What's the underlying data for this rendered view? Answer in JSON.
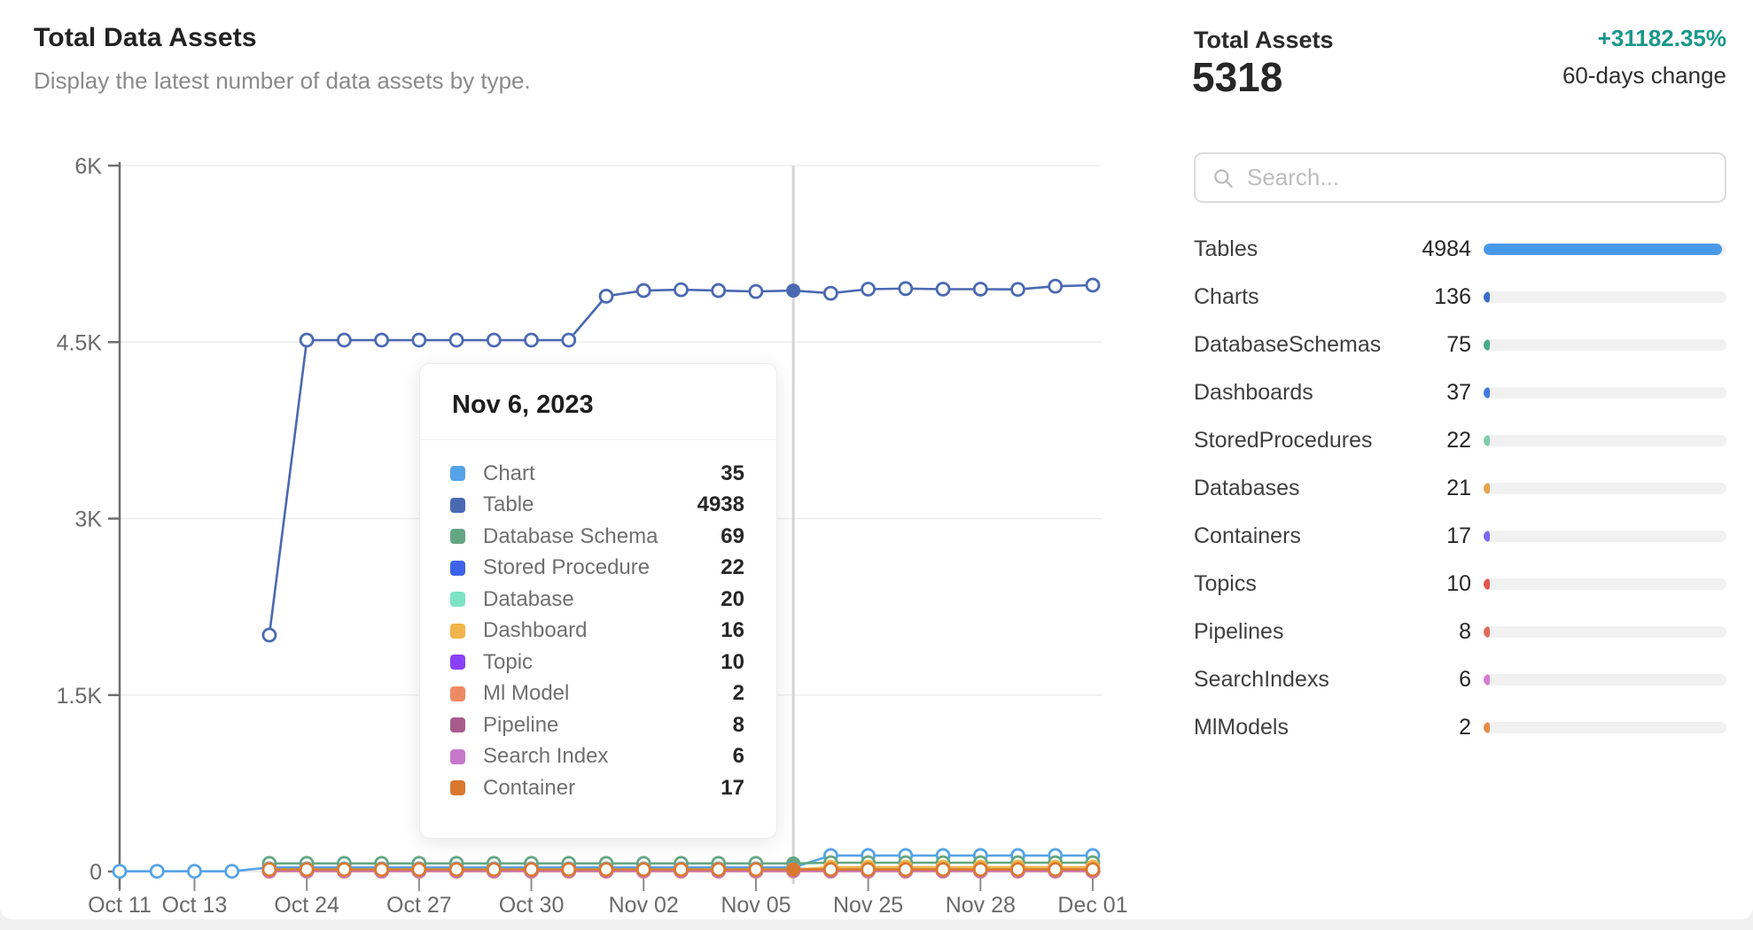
{
  "widget": {
    "title": "Total Data Assets",
    "subtitle": "Display the latest number of data assets by type."
  },
  "summary": {
    "label": "Total Assets",
    "total": "5318",
    "change": "+31182.35%",
    "change_caption": "60-days change",
    "change_color": "#18988a"
  },
  "search": {
    "placeholder": "Search..."
  },
  "asset_list": {
    "total_for_scale": 5318,
    "rows": [
      {
        "label": "Tables",
        "value": 4984,
        "color": "#4a99e9"
      },
      {
        "label": "Charts",
        "value": 136,
        "color": "#3e6cc8"
      },
      {
        "label": "DatabaseSchemas",
        "value": 75,
        "color": "#49a98a"
      },
      {
        "label": "Dashboards",
        "value": 37,
        "color": "#4178e0"
      },
      {
        "label": "StoredProcedures",
        "value": 22,
        "color": "#7ecbaa"
      },
      {
        "label": "Databases",
        "value": 21,
        "color": "#e8a24c"
      },
      {
        "label": "Containers",
        "value": 17,
        "color": "#7b68ee"
      },
      {
        "label": "Topics",
        "value": 10,
        "color": "#e2574e"
      },
      {
        "label": "Pipelines",
        "value": 8,
        "color": "#e06a5a"
      },
      {
        "label": "SearchIndexs",
        "value": 6,
        "color": "#d77bd0"
      },
      {
        "label": "MlModels",
        "value": 2,
        "color": "#e78b4a"
      }
    ]
  },
  "tooltip": {
    "date": "Nov 6, 2023",
    "rows": [
      {
        "label": "Chart",
        "value": 35,
        "color": "#55a3e8"
      },
      {
        "label": "Table",
        "value": 4938,
        "color": "#4a69b1"
      },
      {
        "label": "Database Schema",
        "value": 69,
        "color": "#64a683"
      },
      {
        "label": "Stored Procedure",
        "value": 22,
        "color": "#3e63e8"
      },
      {
        "label": "Database",
        "value": 20,
        "color": "#7ee3c2"
      },
      {
        "label": "Dashboard",
        "value": 16,
        "color": "#f0b44a"
      },
      {
        "label": "Topic",
        "value": 10,
        "color": "#8b41f7"
      },
      {
        "label": "Ml Model",
        "value": 2,
        "color": "#ee8a63"
      },
      {
        "label": "Pipeline",
        "value": 8,
        "color": "#a85a8c"
      },
      {
        "label": "Search Index",
        "value": 6,
        "color": "#c678cb"
      },
      {
        "label": "Container",
        "value": 17,
        "color": "#d9782e"
      }
    ]
  },
  "chart_data": {
    "type": "line",
    "n_points": 27,
    "hover_index": 18,
    "hover_date": "Nov 6, 2023",
    "ylim": [
      0,
      6000
    ],
    "grid": true,
    "y_ticks": [
      {
        "value": 0,
        "label": "0"
      },
      {
        "value": 1500,
        "label": "1.5K"
      },
      {
        "value": 3000,
        "label": "3K"
      },
      {
        "value": 4500,
        "label": "4.5K"
      },
      {
        "value": 6000,
        "label": "6K"
      }
    ],
    "x_ticks": [
      {
        "index": 0,
        "label": "Oct 11"
      },
      {
        "index": 2,
        "label": "Oct 13"
      },
      {
        "index": 5,
        "label": "Oct 24"
      },
      {
        "index": 8,
        "label": "Oct 27"
      },
      {
        "index": 11,
        "label": "Oct 30"
      },
      {
        "index": 14,
        "label": "Nov 02"
      },
      {
        "index": 17,
        "label": "Nov 05"
      },
      {
        "index": 20,
        "label": "Nov 25"
      },
      {
        "index": 23,
        "label": "Nov 28"
      },
      {
        "index": 26,
        "label": "Dec 01"
      }
    ],
    "series": [
      {
        "name": "Chart",
        "color": "#55a3e8",
        "values": [
          2,
          2,
          2,
          2,
          35,
          35,
          35,
          35,
          35,
          35,
          35,
          35,
          35,
          35,
          35,
          35,
          35,
          35,
          35,
          136,
          136,
          136,
          136,
          136,
          136,
          136,
          136
        ]
      },
      {
        "name": "Table",
        "color": "#4a69b1",
        "values": [
          null,
          null,
          null,
          null,
          2010,
          4517,
          4517,
          4517,
          4517,
          4517,
          4517,
          4517,
          4517,
          4890,
          4938,
          4945,
          4938,
          4930,
          4938,
          4915,
          4950,
          4955,
          4950,
          4950,
          4948,
          4975,
          4984
        ]
      },
      {
        "name": "Database Schema",
        "color": "#64a683",
        "values": [
          null,
          null,
          null,
          null,
          69,
          69,
          69,
          69,
          69,
          69,
          69,
          69,
          69,
          69,
          69,
          69,
          69,
          69,
          69,
          75,
          75,
          75,
          75,
          75,
          75,
          75,
          75
        ]
      },
      {
        "name": "Stored Procedure",
        "color": "#3e63e8",
        "values": [
          null,
          null,
          null,
          null,
          22,
          22,
          22,
          22,
          22,
          22,
          22,
          22,
          22,
          22,
          22,
          22,
          22,
          22,
          22,
          22,
          22,
          22,
          22,
          22,
          22,
          22,
          22
        ]
      },
      {
        "name": "Database",
        "color": "#7ee3c2",
        "values": [
          null,
          null,
          null,
          null,
          20,
          20,
          20,
          20,
          20,
          20,
          20,
          20,
          20,
          20,
          20,
          20,
          20,
          20,
          20,
          21,
          21,
          21,
          21,
          21,
          21,
          21,
          21
        ]
      },
      {
        "name": "Dashboard",
        "color": "#f0b44a",
        "values": [
          null,
          null,
          null,
          null,
          16,
          16,
          16,
          16,
          16,
          16,
          16,
          16,
          16,
          16,
          16,
          16,
          16,
          16,
          16,
          37,
          37,
          37,
          37,
          37,
          37,
          37,
          37
        ]
      },
      {
        "name": "Topic",
        "color": "#8b41f7",
        "values": [
          null,
          null,
          null,
          null,
          10,
          10,
          10,
          10,
          10,
          10,
          10,
          10,
          10,
          10,
          10,
          10,
          10,
          10,
          10,
          10,
          10,
          10,
          10,
          10,
          10,
          10,
          10
        ]
      },
      {
        "name": "Ml Model",
        "color": "#ee8a63",
        "values": [
          null,
          null,
          null,
          null,
          2,
          2,
          2,
          2,
          2,
          2,
          2,
          2,
          2,
          2,
          2,
          2,
          2,
          2,
          2,
          2,
          2,
          2,
          2,
          2,
          2,
          2,
          2
        ]
      },
      {
        "name": "Pipeline",
        "color": "#a85a8c",
        "values": [
          null,
          null,
          null,
          null,
          8,
          8,
          8,
          8,
          8,
          8,
          8,
          8,
          8,
          8,
          8,
          8,
          8,
          8,
          8,
          8,
          8,
          8,
          8,
          8,
          8,
          8,
          8
        ]
      },
      {
        "name": "Search Index",
        "color": "#c678cb",
        "values": [
          null,
          null,
          null,
          null,
          6,
          6,
          6,
          6,
          6,
          6,
          6,
          6,
          6,
          6,
          6,
          6,
          6,
          6,
          6,
          6,
          6,
          6,
          6,
          6,
          6,
          6,
          6
        ]
      },
      {
        "name": "Container",
        "color": "#d9782e",
        "values": [
          null,
          null,
          null,
          null,
          17,
          17,
          17,
          17,
          17,
          17,
          17,
          17,
          17,
          17,
          17,
          17,
          17,
          17,
          17,
          17,
          17,
          17,
          17,
          17,
          17,
          17,
          17
        ]
      }
    ]
  }
}
